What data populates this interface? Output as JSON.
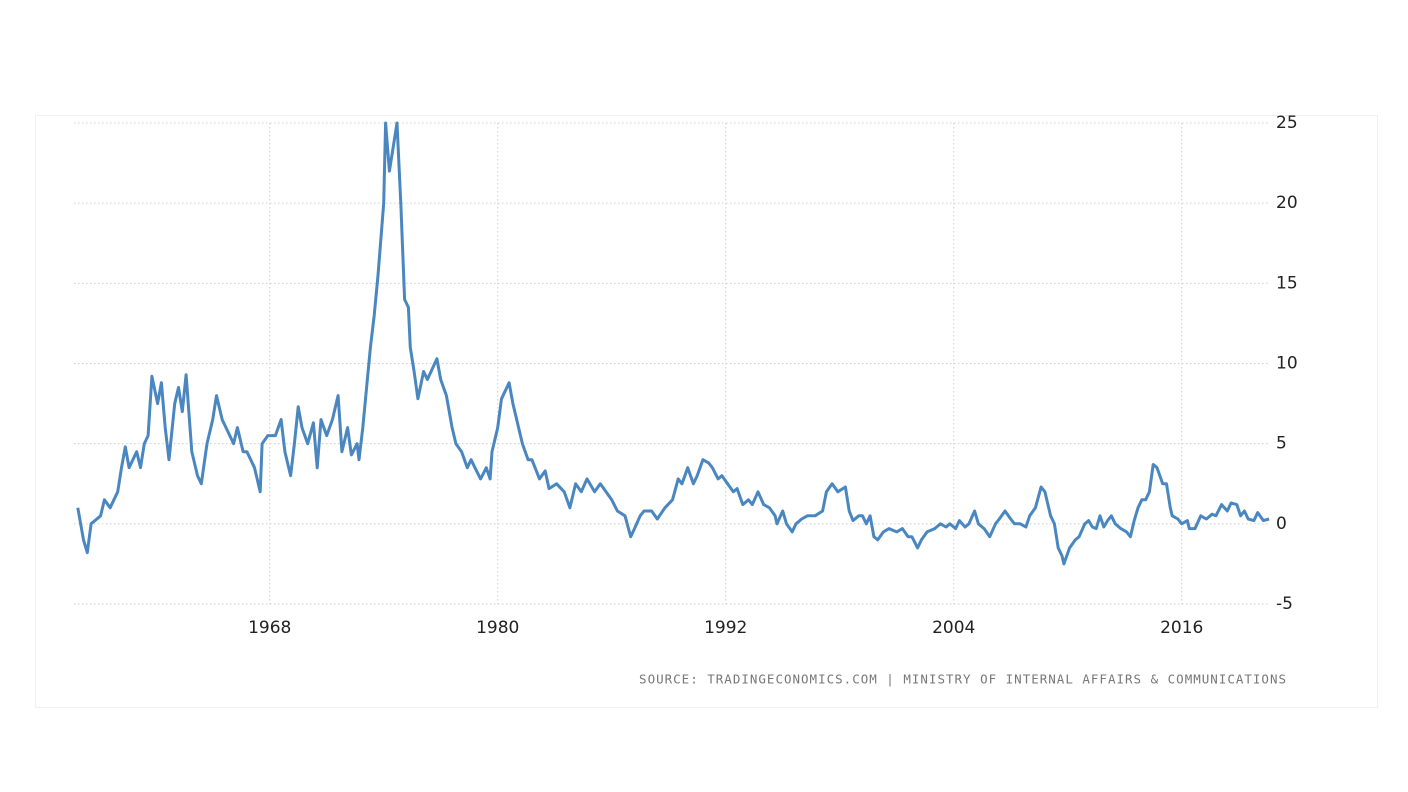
{
  "chart_data": {
    "type": "line",
    "source": "SOURCE: TRADINGECONOMICS.COM | MINISTRY OF INTERNAL AFFAIRS & COMMUNICATIONS",
    "color": "#4a86c0",
    "grid": true,
    "xlim": [
      1957.7,
      2020.7
    ],
    "xticks": [
      1968,
      1980,
      1992,
      2004,
      2016
    ],
    "ylim": [
      -5,
      25
    ],
    "yticks": [
      -5,
      0,
      5,
      10,
      15,
      20,
      25
    ],
    "x": [
      1957.9,
      1958.2,
      1958.4,
      1958.6,
      1959.1,
      1959.3,
      1959.6,
      1960.0,
      1960.2,
      1960.4,
      1960.6,
      1961.0,
      1961.2,
      1961.4,
      1961.6,
      1961.8,
      1962.1,
      1962.3,
      1962.5,
      1962.7,
      1963.0,
      1963.2,
      1963.4,
      1963.6,
      1963.9,
      1964.2,
      1964.4,
      1964.7,
      1965.0,
      1965.2,
      1965.5,
      1965.7,
      1966.1,
      1966.3,
      1966.6,
      1966.8,
      1967.2,
      1967.5,
      1967.6,
      1967.9,
      1968.3,
      1968.6,
      1968.8,
      1969.1,
      1969.3,
      1969.5,
      1969.7,
      1970.0,
      1970.3,
      1970.5,
      1970.7,
      1971.0,
      1971.3,
      1971.6,
      1971.8,
      1972.1,
      1972.3,
      1972.6,
      1972.7,
      1972.9,
      1973.1,
      1973.3,
      1973.5,
      1973.7,
      1974.0,
      1974.1,
      1974.3,
      1974.5,
      1974.7,
      1974.9,
      1975.1,
      1975.3,
      1975.4,
      1975.6,
      1975.8,
      1976.1,
      1976.3,
      1976.8,
      1977.0,
      1977.3,
      1977.6,
      1977.8,
      1978.1,
      1978.4,
      1978.6,
      1978.8,
      1979.1,
      1979.4,
      1979.6,
      1979.7,
      1980.0,
      1980.2,
      1980.4,
      1980.6,
      1980.8,
      1981.1,
      1981.3,
      1981.6,
      1981.8,
      1982.2,
      1982.5,
      1982.7,
      1983.1,
      1983.5,
      1983.8,
      1984.1,
      1984.4,
      1984.7,
      1985.1,
      1985.4,
      1985.7,
      1986.0,
      1986.3,
      1986.7,
      1987.0,
      1987.2,
      1987.5,
      1987.7,
      1988.1,
      1988.4,
      1988.8,
      1989.2,
      1989.5,
      1989.7,
      1990.0,
      1990.3,
      1990.5,
      1990.8,
      1991.1,
      1991.3,
      1991.6,
      1991.8,
      1992.1,
      1992.4,
      1992.6,
      1992.9,
      1993.2,
      1993.4,
      1993.7,
      1994.0,
      1994.3,
      1994.6,
      1994.7,
      1995.0,
      1995.2,
      1995.5,
      1995.7,
      1996.0,
      1996.3,
      1996.7,
      1997.1,
      1997.3,
      1997.6,
      1997.9,
      1998.3,
      1998.5,
      1998.7,
      1999.0,
      1999.2,
      1999.4,
      1999.6,
      1999.8,
      2000.0,
      2000.3,
      2000.6,
      2001.0,
      2001.3,
      2001.6,
      2001.8,
      2002.1,
      2002.3,
      2002.6,
      2003.0,
      2003.3,
      2003.6,
      2003.8,
      2004.1,
      2004.3,
      2004.6,
      2004.8,
      2005.1,
      2005.3,
      2005.6,
      2005.9,
      2006.2,
      2006.4,
      2006.7,
      2007.0,
      2007.2,
      2007.5,
      2007.8,
      2008.0,
      2008.3,
      2008.6,
      2008.8,
      2009.1,
      2009.3,
      2009.5,
      2009.7,
      2009.8,
      2010.1,
      2010.4,
      2010.6,
      2010.9,
      2011.1,
      2011.3,
      2011.5,
      2011.7,
      2011.9,
      2012.1,
      2012.3,
      2012.5,
      2012.8,
      2013.1,
      2013.3,
      2013.5,
      2013.7,
      2013.9,
      2014.1,
      2014.3,
      2014.5,
      2014.7,
      2015.0,
      2015.2,
      2015.4,
      2015.5,
      2015.8,
      2016.0,
      2016.3,
      2016.4,
      2016.7,
      2017.0,
      2017.3,
      2017.6,
      2017.8,
      2018.1,
      2018.4,
      2018.6,
      2018.9,
      2019.1,
      2019.3,
      2019.5,
      2019.8,
      2020.0,
      2020.3,
      2020.6
    ],
    "values": [
      1.0,
      -1.0,
      -1.8,
      0,
      0.5,
      1.5,
      1.0,
      2.0,
      3.5,
      4.8,
      3.5,
      4.5,
      3.5,
      5.0,
      5.5,
      9.2,
      7.5,
      8.8,
      6.0,
      4.0,
      7.5,
      8.5,
      7.0,
      9.3,
      4.5,
      3.0,
      2.5,
      5.0,
      6.5,
      8.0,
      6.5,
      6.0,
      5.0,
      6.0,
      4.5,
      4.5,
      3.5,
      2.0,
      5.0,
      5.5,
      5.5,
      6.5,
      4.5,
      3.0,
      5.0,
      7.3,
      6.0,
      5.0,
      6.3,
      3.5,
      6.5,
      5.5,
      6.5,
      8.0,
      4.5,
      6.0,
      4.3,
      5.0,
      4.0,
      6.0,
      8.5,
      11.0,
      13.0,
      15.5,
      20.0,
      25.0,
      22.0,
      23.5,
      25.0,
      20.0,
      14.0,
      13.5,
      11.0,
      9.5,
      7.8,
      9.5,
      9.0,
      10.3,
      9.0,
      8.0,
      6.0,
      5.0,
      4.5,
      3.5,
      4.0,
      3.5,
      2.8,
      3.5,
      2.8,
      4.5,
      6.0,
      7.8,
      8.3,
      8.8,
      7.5,
      6.0,
      5.0,
      4.0,
      4.0,
      2.8,
      3.3,
      2.2,
      2.5,
      2.0,
      1.0,
      2.5,
      2.0,
      2.8,
      2.0,
      2.5,
      2.0,
      1.5,
      0.8,
      0.5,
      -0.8,
      -0.3,
      0.5,
      0.8,
      0.8,
      0.3,
      1.0,
      1.5,
      2.8,
      2.5,
      3.5,
      2.5,
      3.0,
      4.0,
      3.8,
      3.5,
      2.8,
      3.0,
      2.5,
      2.0,
      2.2,
      1.2,
      1.5,
      1.2,
      2.0,
      1.2,
      1.0,
      0.5,
      0,
      0.8,
      0,
      -0.5,
      0,
      0.3,
      0.5,
      0.5,
      0.8,
      2.0,
      2.5,
      2.0,
      2.3,
      0.8,
      0.2,
      0.5,
      0.5,
      0,
      0.5,
      -0.8,
      -1.0,
      -0.5,
      -0.3,
      -0.5,
      -0.3,
      -0.8,
      -0.8,
      -1.5,
      -1.0,
      -0.5,
      -0.3,
      0,
      -0.2,
      0,
      -0.3,
      0.2,
      -0.2,
      0,
      0.8,
      0,
      -0.3,
      -0.8,
      0,
      0.3,
      0.8,
      0.3,
      0,
      0,
      -0.2,
      0.5,
      1.0,
      2.3,
      2.0,
      0.5,
      0,
      -1.5,
      -2.0,
      -2.5,
      -1.5,
      -1.0,
      -0.8,
      0,
      0.2,
      -0.2,
      -0.3,
      0.5,
      -0.2,
      0.2,
      0.5,
      0,
      -0.3,
      -0.5,
      -0.8,
      0.2,
      1.0,
      1.5,
      1.5,
      2.0,
      3.7,
      3.5,
      2.5,
      2.5,
      1.0,
      0.5,
      0.3,
      0,
      0.2,
      -0.3,
      -0.3,
      0.5,
      0.3,
      0.6,
      0.5,
      1.2,
      0.8,
      1.3,
      1.2,
      0.5,
      0.8,
      0.3,
      0.2,
      0.7,
      0.2,
      0.3
    ]
  }
}
